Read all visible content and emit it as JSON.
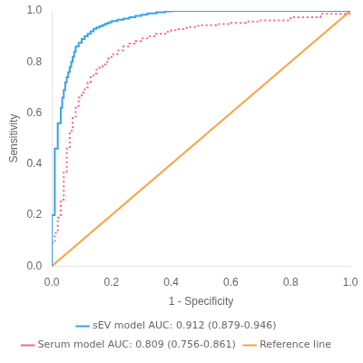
{
  "chart_data": {
    "type": "line",
    "xlabel": "1 - Specificity",
    "ylabel": "Sensitivity",
    "xlim": [
      0.0,
      1.0
    ],
    "ylim": [
      0.0,
      1.0
    ],
    "xticks": [
      {
        "value": 0,
        "label": "0.0"
      },
      0.2,
      0.4,
      0.6,
      0.8,
      {
        "value": 1,
        "label": "1.0"
      }
    ],
    "yticks": [
      {
        "value": 0,
        "label": "0.0"
      },
      0.2,
      0.4,
      0.6,
      0.8,
      {
        "value": 1,
        "label": "1.0"
      }
    ],
    "grid": false,
    "legend": "bottom",
    "series": [
      {
        "name": "sEV model AUC: 0.912 (0.879-0.946)",
        "line_style": "solid",
        "x": [
          0.0,
          0.0,
          0.01,
          0.01,
          0.02,
          0.02,
          0.03,
          0.03,
          0.035,
          0.035,
          0.04,
          0.04,
          0.045,
          0.045,
          0.05,
          0.05,
          0.055,
          0.055,
          0.06,
          0.06,
          0.065,
          0.065,
          0.07,
          0.07,
          0.075,
          0.075,
          0.08,
          0.08,
          0.09,
          0.09,
          0.1,
          0.1,
          0.11,
          0.11,
          0.12,
          0.12,
          0.13,
          0.13,
          0.14,
          0.14,
          0.15,
          0.15,
          0.16,
          0.16,
          0.17,
          0.17,
          0.18,
          0.18,
          0.19,
          0.19,
          0.2,
          0.2,
          0.22,
          0.22,
          0.24,
          0.24,
          0.26,
          0.26,
          0.28,
          0.28,
          0.3,
          0.3,
          0.32,
          0.32,
          0.35,
          0.35,
          0.38,
          0.38,
          0.4,
          0.4,
          0.45,
          0.45,
          0.5,
          0.5,
          0.6,
          0.6,
          0.7,
          0.7,
          1.0,
          1.0
        ],
        "values": [
          0.0,
          0.2,
          0.2,
          0.46,
          0.46,
          0.56,
          0.56,
          0.62,
          0.62,
          0.66,
          0.66,
          0.69,
          0.69,
          0.72,
          0.72,
          0.74,
          0.74,
          0.76,
          0.76,
          0.78,
          0.78,
          0.8,
          0.8,
          0.82,
          0.82,
          0.84,
          0.84,
          0.86,
          0.86,
          0.875,
          0.875,
          0.89,
          0.89,
          0.9,
          0.9,
          0.91,
          0.91,
          0.92,
          0.92,
          0.93,
          0.93,
          0.935,
          0.935,
          0.94,
          0.94,
          0.945,
          0.945,
          0.95,
          0.95,
          0.955,
          0.955,
          0.96,
          0.96,
          0.965,
          0.965,
          0.97,
          0.97,
          0.975,
          0.975,
          0.98,
          0.98,
          0.985,
          0.985,
          0.99,
          0.99,
          0.995,
          0.995,
          0.998,
          0.998,
          1.0,
          1.0,
          1.0,
          1.0,
          1.0,
          1.0,
          1.0,
          1.0,
          1.0,
          1.0,
          1.0
        ]
      },
      {
        "name": "Serum model AUC: 0.809 (0.756-0.861)",
        "line_style": "dotted",
        "x": [
          0.0,
          0.0,
          0.01,
          0.01,
          0.02,
          0.02,
          0.03,
          0.03,
          0.04,
          0.04,
          0.05,
          0.05,
          0.06,
          0.06,
          0.07,
          0.07,
          0.08,
          0.08,
          0.09,
          0.09,
          0.1,
          0.1,
          0.11,
          0.11,
          0.12,
          0.12,
          0.13,
          0.13,
          0.14,
          0.14,
          0.15,
          0.15,
          0.16,
          0.16,
          0.17,
          0.17,
          0.18,
          0.18,
          0.19,
          0.19,
          0.2,
          0.2,
          0.22,
          0.22,
          0.24,
          0.24,
          0.26,
          0.26,
          0.28,
          0.28,
          0.3,
          0.3,
          0.32,
          0.32,
          0.35,
          0.35,
          0.38,
          0.38,
          0.4,
          0.4,
          0.42,
          0.42,
          0.44,
          0.44,
          0.46,
          0.46,
          0.48,
          0.48,
          0.5,
          0.5,
          0.55,
          0.55,
          0.6,
          0.6,
          0.65,
          0.65,
          0.7,
          0.7,
          0.8,
          0.8,
          0.9,
          0.9,
          1.0,
          1.0
        ],
        "values": [
          0.0,
          0.09,
          0.09,
          0.13,
          0.13,
          0.19,
          0.19,
          0.26,
          0.26,
          0.37,
          0.37,
          0.46,
          0.46,
          0.53,
          0.53,
          0.58,
          0.58,
          0.62,
          0.62,
          0.66,
          0.66,
          0.68,
          0.68,
          0.7,
          0.7,
          0.72,
          0.72,
          0.74,
          0.74,
          0.755,
          0.755,
          0.77,
          0.77,
          0.78,
          0.78,
          0.79,
          0.79,
          0.8,
          0.8,
          0.815,
          0.815,
          0.83,
          0.83,
          0.845,
          0.845,
          0.86,
          0.86,
          0.872,
          0.872,
          0.882,
          0.882,
          0.892,
          0.892,
          0.9,
          0.9,
          0.91,
          0.91,
          0.918,
          0.918,
          0.924,
          0.924,
          0.929,
          0.929,
          0.933,
          0.933,
          0.937,
          0.937,
          0.941,
          0.941,
          0.944,
          0.944,
          0.948,
          0.948,
          0.953,
          0.953,
          0.958,
          0.958,
          0.963,
          0.963,
          0.975,
          0.975,
          0.988,
          0.988,
          1.0
        ]
      },
      {
        "name": "Reference line",
        "line_style": "solid",
        "x": [
          0,
          1
        ],
        "values": [
          0,
          1
        ]
      }
    ]
  }
}
